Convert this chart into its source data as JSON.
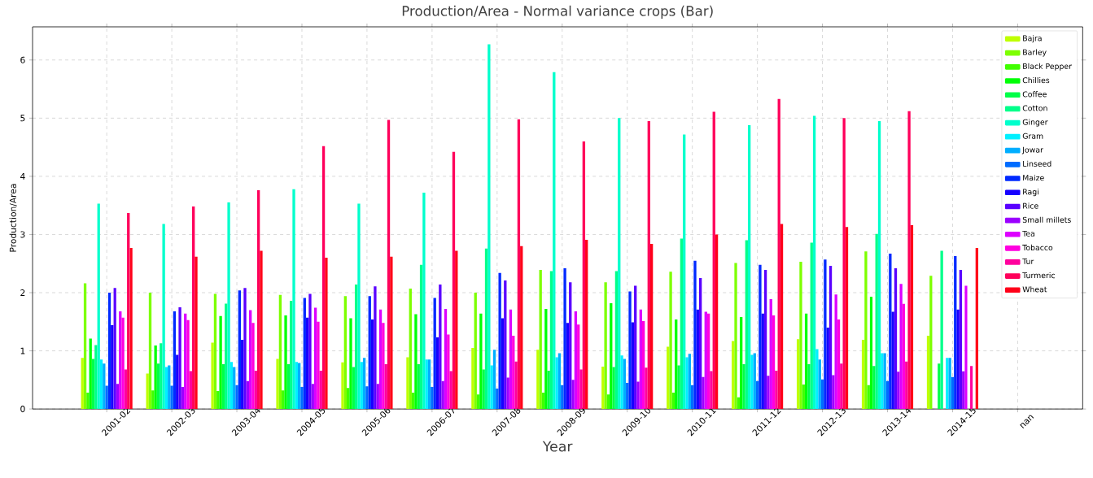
{
  "chart_data": {
    "type": "bar",
    "title": "Production/Area - Normal variance crops (Bar)",
    "xlabel": "Year",
    "ylabel": "Production/Area",
    "categories": [
      "2001-02",
      "2002-03",
      "2003-04",
      "2004-05",
      "2005-06",
      "2006-07",
      "2007-08",
      "2008-09",
      "2009-10",
      "2010-11",
      "2011-12",
      "2012-13",
      "2013-14",
      "2014-15",
      "nan"
    ],
    "series": [
      {
        "name": "Bajra",
        "color": "#bfff00",
        "values": [
          0.88,
          0.61,
          1.14,
          0.86,
          0.8,
          0.89,
          1.05,
          1.02,
          0.73,
          1.07,
          1.17,
          1.2,
          1.19,
          1.26,
          null
        ]
      },
      {
        "name": "Barley",
        "color": "#7dff00",
        "values": [
          2.16,
          2.0,
          1.98,
          1.96,
          1.94,
          2.07,
          2.0,
          2.39,
          2.18,
          2.36,
          2.51,
          2.53,
          2.71,
          2.29,
          null
        ]
      },
      {
        "name": "Black Pepper",
        "color": "#40ff00",
        "values": [
          0.28,
          0.32,
          0.31,
          0.32,
          0.36,
          0.28,
          0.25,
          0.28,
          0.25,
          0.28,
          0.2,
          0.42,
          0.41,
          null,
          null
        ]
      },
      {
        "name": "Chillies",
        "color": "#00ff06",
        "values": [
          1.21,
          1.09,
          1.6,
          1.61,
          1.56,
          1.63,
          1.64,
          1.72,
          1.82,
          1.54,
          1.58,
          1.64,
          1.93,
          null,
          null
        ]
      },
      {
        "name": "Coffee",
        "color": "#00ff48",
        "values": [
          0.86,
          0.78,
          0.77,
          0.77,
          0.72,
          0.77,
          0.68,
          0.66,
          0.72,
          0.75,
          0.77,
          0.77,
          0.74,
          0.78,
          null
        ]
      },
      {
        "name": "Cotton",
        "color": "#00ff8a",
        "values": [
          1.1,
          1.13,
          1.81,
          1.86,
          2.14,
          2.48,
          2.76,
          2.37,
          2.37,
          2.93,
          2.9,
          2.86,
          3.01,
          2.72,
          null
        ]
      },
      {
        "name": "Ginger",
        "color": "#00ffcc",
        "values": [
          3.53,
          3.18,
          3.55,
          3.78,
          3.53,
          3.72,
          6.27,
          5.79,
          5.0,
          4.72,
          4.88,
          5.04,
          4.95,
          null,
          null
        ]
      },
      {
        "name": "Gram",
        "color": "#00f0ff",
        "values": [
          0.85,
          0.72,
          0.81,
          0.81,
          0.81,
          0.85,
          0.75,
          0.89,
          0.92,
          0.89,
          0.93,
          1.03,
          0.96,
          0.88,
          null
        ]
      },
      {
        "name": "Jowar",
        "color": "#00aeff",
        "values": [
          0.78,
          0.75,
          0.72,
          0.79,
          0.88,
          0.85,
          1.02,
          0.96,
          0.86,
          0.95,
          0.96,
          0.85,
          0.96,
          0.88,
          null
        ]
      },
      {
        "name": "Linseed",
        "color": "#006cff",
        "values": [
          0.4,
          0.4,
          0.41,
          0.38,
          0.39,
          0.38,
          0.35,
          0.41,
          0.45,
          0.41,
          0.48,
          0.51,
          0.48,
          0.55,
          null
        ]
      },
      {
        "name": "Maize",
        "color": "#002aff",
        "values": [
          2.0,
          1.68,
          2.04,
          1.91,
          1.94,
          1.91,
          2.34,
          2.42,
          2.02,
          2.55,
          2.48,
          2.57,
          2.67,
          2.63,
          null
        ]
      },
      {
        "name": "Ragi",
        "color": "#1700ff",
        "values": [
          1.44,
          0.93,
          1.19,
          1.57,
          1.54,
          1.23,
          1.56,
          1.48,
          1.49,
          1.71,
          1.64,
          1.4,
          1.67,
          1.71,
          null
        ]
      },
      {
        "name": "Rice",
        "color": "#5900ff",
        "values": [
          2.08,
          1.75,
          2.08,
          1.98,
          2.11,
          2.14,
          2.21,
          2.18,
          2.12,
          2.25,
          2.39,
          2.46,
          2.42,
          2.39,
          null
        ]
      },
      {
        "name": "Small millets",
        "color": "#9b00ff",
        "values": [
          0.43,
          0.38,
          0.48,
          0.43,
          0.43,
          0.48,
          0.54,
          0.5,
          0.47,
          0.55,
          0.57,
          0.58,
          0.64,
          0.65,
          null
        ]
      },
      {
        "name": "Tea",
        "color": "#dd00ff",
        "values": [
          1.68,
          1.64,
          1.7,
          1.74,
          1.71,
          1.72,
          1.71,
          1.68,
          1.71,
          1.67,
          1.89,
          1.97,
          2.15,
          2.12,
          null
        ]
      },
      {
        "name": "Tobacco",
        "color": "#ff00df",
        "values": [
          1.57,
          1.53,
          1.48,
          1.5,
          1.48,
          1.28,
          1.26,
          1.45,
          1.51,
          1.64,
          1.61,
          1.54,
          1.81,
          null,
          null
        ]
      },
      {
        "name": "Tur",
        "color": "#ff009d",
        "values": [
          0.68,
          0.65,
          0.66,
          0.66,
          0.77,
          0.65,
          0.82,
          0.68,
          0.71,
          0.65,
          0.66,
          0.78,
          0.82,
          0.74,
          null
        ]
      },
      {
        "name": "Turmeric",
        "color": "#ff005b",
        "values": [
          3.37,
          3.48,
          3.76,
          4.52,
          4.97,
          4.42,
          4.98,
          4.6,
          4.95,
          5.11,
          5.33,
          5.0,
          5.12,
          null,
          null
        ]
      },
      {
        "name": "Wheat",
        "color": "#ff0019",
        "values": [
          2.77,
          2.62,
          2.72,
          2.6,
          2.62,
          2.72,
          2.8,
          2.91,
          2.84,
          3.0,
          3.18,
          3.13,
          3.16,
          2.77,
          null
        ]
      }
    ],
    "ylim": [
      0,
      6.57
    ],
    "yticks": [
      0,
      1,
      2,
      3,
      4,
      5,
      6
    ],
    "grid": true,
    "legend": "top right"
  }
}
